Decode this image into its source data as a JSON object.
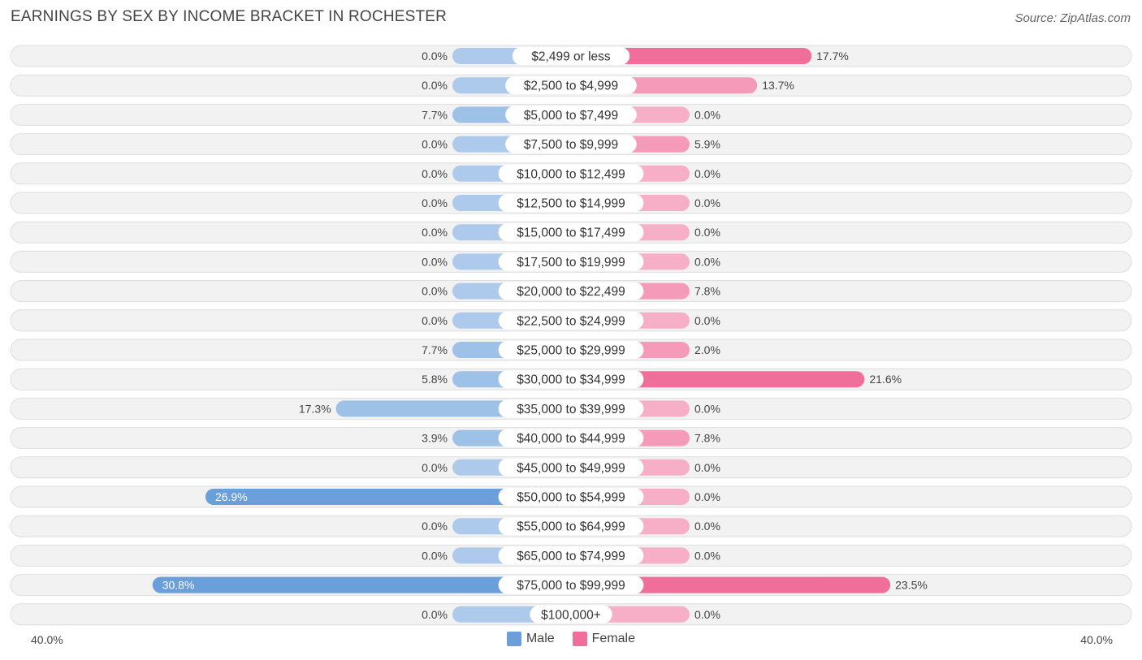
{
  "chart_data": {
    "type": "bar",
    "title": "EARNINGS BY SEX BY INCOME BRACKET IN ROCHESTER",
    "source": "Source: ZipAtlas.com",
    "categories": [
      "$2,499 or less",
      "$2,500 to $4,999",
      "$5,000 to $7,499",
      "$7,500 to $9,999",
      "$10,000 to $12,499",
      "$12,500 to $14,999",
      "$15,000 to $17,499",
      "$17,500 to $19,999",
      "$20,000 to $22,499",
      "$22,500 to $24,999",
      "$25,000 to $29,999",
      "$30,000 to $34,999",
      "$35,000 to $39,999",
      "$40,000 to $44,999",
      "$45,000 to $49,999",
      "$50,000 to $54,999",
      "$55,000 to $64,999",
      "$65,000 to $74,999",
      "$75,000 to $99,999",
      "$100,000+"
    ],
    "series": [
      {
        "name": "Male",
        "color": "#6a9fdc",
        "values": [
          0.0,
          0.0,
          7.7,
          0.0,
          0.0,
          0.0,
          0.0,
          0.0,
          0.0,
          0.0,
          7.7,
          5.8,
          17.3,
          3.9,
          0.0,
          26.9,
          0.0,
          0.0,
          30.8,
          0.0
        ],
        "labels": [
          "0.0%",
          "0.0%",
          "7.7%",
          "0.0%",
          "0.0%",
          "0.0%",
          "0.0%",
          "0.0%",
          "0.0%",
          "0.0%",
          "7.7%",
          "5.8%",
          "17.3%",
          "3.9%",
          "0.0%",
          "26.9%",
          "0.0%",
          "0.0%",
          "30.8%",
          "0.0%"
        ]
      },
      {
        "name": "Female",
        "color": "#f06e9a",
        "values": [
          17.7,
          13.7,
          0.0,
          5.9,
          0.0,
          0.0,
          0.0,
          0.0,
          7.8,
          0.0,
          2.0,
          21.6,
          0.0,
          7.8,
          0.0,
          0.0,
          0.0,
          0.0,
          23.5,
          0.0
        ],
        "labels": [
          "17.7%",
          "13.7%",
          "0.0%",
          "5.9%",
          "0.0%",
          "0.0%",
          "0.0%",
          "0.0%",
          "7.8%",
          "0.0%",
          "2.0%",
          "21.6%",
          "0.0%",
          "7.8%",
          "0.0%",
          "0.0%",
          "0.0%",
          "0.0%",
          "23.5%",
          "0.0%"
        ]
      }
    ],
    "xlim": [
      -40,
      40
    ],
    "axis_left_label": "40.0%",
    "axis_right_label": "40.0%",
    "legend": [
      "Male",
      "Female"
    ],
    "legend_position": "bottom-center"
  }
}
